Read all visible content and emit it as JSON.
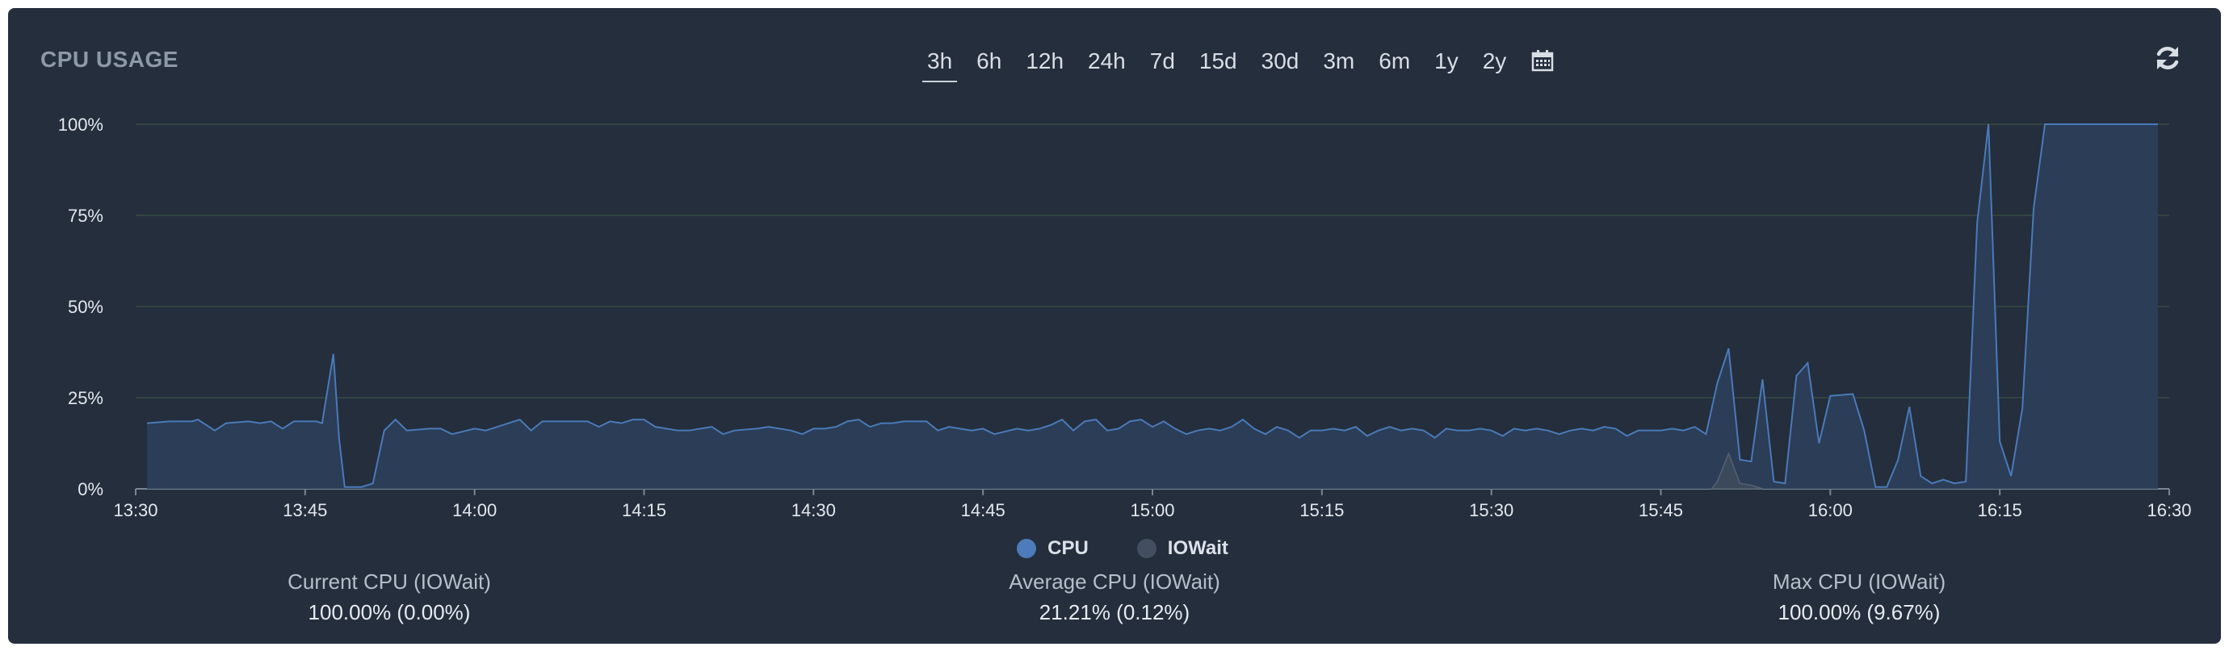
{
  "panel": {
    "title": "CPU USAGE",
    "refresh_icon": "refresh-icon",
    "calendar_icon": "calendar-icon"
  },
  "ranges": {
    "items": [
      "3h",
      "6h",
      "12h",
      "24h",
      "7d",
      "15d",
      "30d",
      "3m",
      "6m",
      "1y",
      "2y"
    ],
    "active": "3h"
  },
  "legend": {
    "cpu": "CPU",
    "iowait": "IOWait"
  },
  "stats": {
    "current_label": "Current CPU (IOWait)",
    "current_value": "100.00% (0.00%)",
    "average_label": "Average CPU (IOWait)",
    "average_value": "21.21% (0.12%)",
    "max_label": "Max CPU (IOWait)",
    "max_value": "100.00% (9.67%)"
  },
  "colors": {
    "background": "#242e3c",
    "cpu_line": "#4a7ab8",
    "cpu_fill": "#2c3e58",
    "iowait": "#3d4a5c",
    "grid": "#364a42"
  },
  "chart_data": {
    "type": "area",
    "x_ticks": [
      "13:30",
      "13:45",
      "14:00",
      "14:15",
      "14:30",
      "14:45",
      "15:00",
      "15:15",
      "15:30",
      "15:45",
      "16:00",
      "16:15",
      "16:30"
    ],
    "y_ticks": [
      "0%",
      "25%",
      "50%",
      "75%",
      "100%"
    ],
    "ylim": [
      0,
      100
    ],
    "xlim_minutes": [
      0,
      180
    ],
    "grid": true,
    "series": [
      {
        "name": "CPU",
        "points": [
          [
            1,
            18
          ],
          [
            3,
            18.5
          ],
          [
            5,
            18.5
          ],
          [
            5.5,
            19
          ],
          [
            7,
            16
          ],
          [
            8,
            18
          ],
          [
            10,
            18.5
          ],
          [
            11,
            18
          ],
          [
            12,
            18.5
          ],
          [
            13,
            16.5
          ],
          [
            14,
            18.5
          ],
          [
            15,
            18.5
          ],
          [
            16,
            18.5
          ],
          [
            16.5,
            18
          ],
          [
            17.5,
            37
          ],
          [
            18,
            14
          ],
          [
            18.5,
            0.5
          ],
          [
            20,
            0.5
          ],
          [
            21,
            1.5
          ],
          [
            22,
            16
          ],
          [
            23,
            19
          ],
          [
            24,
            16
          ],
          [
            26,
            16.5
          ],
          [
            27,
            16.5
          ],
          [
            28,
            15
          ],
          [
            30,
            16.5
          ],
          [
            31,
            16
          ],
          [
            32,
            17
          ],
          [
            34,
            19
          ],
          [
            35,
            16
          ],
          [
            36,
            18.5
          ],
          [
            38,
            18.5
          ],
          [
            40,
            18.5
          ],
          [
            41,
            17
          ],
          [
            42,
            18.5
          ],
          [
            43,
            18
          ],
          [
            44,
            19
          ],
          [
            45,
            19
          ],
          [
            46,
            17
          ],
          [
            48,
            16
          ],
          [
            49,
            16
          ],
          [
            50,
            16.5
          ],
          [
            51,
            17
          ],
          [
            52,
            15
          ],
          [
            53,
            16
          ],
          [
            55,
            16.5
          ],
          [
            56,
            17
          ],
          [
            58,
            16
          ],
          [
            59,
            15
          ],
          [
            60,
            16.5
          ],
          [
            61,
            16.5
          ],
          [
            62,
            17
          ],
          [
            63,
            18.5
          ],
          [
            64,
            19
          ],
          [
            65,
            17
          ],
          [
            66,
            18
          ],
          [
            67,
            18
          ],
          [
            68,
            18.5
          ],
          [
            70,
            18.5
          ],
          [
            71,
            16
          ],
          [
            72,
            17
          ],
          [
            74,
            16
          ],
          [
            75,
            16.5
          ],
          [
            76,
            15
          ],
          [
            78,
            16.5
          ],
          [
            79,
            16
          ],
          [
            80,
            16.5
          ],
          [
            81,
            17.5
          ],
          [
            82,
            19
          ],
          [
            83,
            16
          ],
          [
            84,
            18.5
          ],
          [
            85,
            19
          ],
          [
            86,
            16
          ],
          [
            87,
            16.5
          ],
          [
            88,
            18.5
          ],
          [
            89,
            19
          ],
          [
            90,
            17
          ],
          [
            91,
            18.5
          ],
          [
            92,
            16.5
          ],
          [
            93,
            15
          ],
          [
            94,
            16
          ],
          [
            95,
            16.5
          ],
          [
            96,
            16
          ],
          [
            97,
            17
          ],
          [
            98,
            19
          ],
          [
            99,
            16.5
          ],
          [
            100,
            15
          ],
          [
            101,
            17
          ],
          [
            102,
            16
          ],
          [
            103,
            14
          ],
          [
            104,
            16
          ],
          [
            105,
            16
          ],
          [
            106,
            16.5
          ],
          [
            107,
            16
          ],
          [
            108,
            17
          ],
          [
            109,
            14.5
          ],
          [
            110,
            16
          ],
          [
            111,
            17
          ],
          [
            112,
            16
          ],
          [
            113,
            16.5
          ],
          [
            114,
            16
          ],
          [
            115,
            14
          ],
          [
            116,
            16.5
          ],
          [
            117,
            16
          ],
          [
            118,
            16
          ],
          [
            119,
            16.5
          ],
          [
            120,
            16
          ],
          [
            121,
            14.5
          ],
          [
            122,
            16.5
          ],
          [
            123,
            16
          ],
          [
            124,
            16.5
          ],
          [
            125,
            16
          ],
          [
            126,
            15
          ],
          [
            127,
            16
          ],
          [
            128,
            16.5
          ],
          [
            129,
            16
          ],
          [
            130,
            17
          ],
          [
            131,
            16.5
          ],
          [
            132,
            14.5
          ],
          [
            133,
            16
          ],
          [
            134,
            16
          ],
          [
            135,
            16
          ],
          [
            136,
            16.5
          ],
          [
            137,
            16
          ],
          [
            138,
            17
          ],
          [
            139,
            15
          ],
          [
            140,
            29
          ],
          [
            141,
            38.5
          ],
          [
            142,
            8
          ],
          [
            143,
            7.5
          ],
          [
            144,
            30
          ],
          [
            145,
            2
          ],
          [
            146,
            1.5
          ],
          [
            147,
            31
          ],
          [
            148,
            34.5
          ],
          [
            149,
            12.5
          ],
          [
            150,
            25.5
          ],
          [
            152,
            26
          ],
          [
            153,
            16
          ],
          [
            154,
            0.5
          ],
          [
            155,
            0.5
          ],
          [
            156,
            8
          ],
          [
            157,
            22.5
          ],
          [
            158,
            3.5
          ],
          [
            159,
            1.5
          ],
          [
            160,
            2.5
          ],
          [
            161,
            1.5
          ],
          [
            162,
            2
          ],
          [
            163,
            73
          ],
          [
            164,
            100
          ],
          [
            165,
            13
          ],
          [
            166,
            3.5
          ],
          [
            167,
            22
          ],
          [
            168,
            77
          ],
          [
            169,
            100
          ],
          [
            179,
            100
          ]
        ]
      },
      {
        "name": "IOWait",
        "points": [
          [
            139.5,
            0
          ],
          [
            140,
            2
          ],
          [
            141,
            9.7
          ],
          [
            142,
            1.5
          ],
          [
            143,
            1
          ],
          [
            144,
            0
          ]
        ]
      }
    ]
  }
}
